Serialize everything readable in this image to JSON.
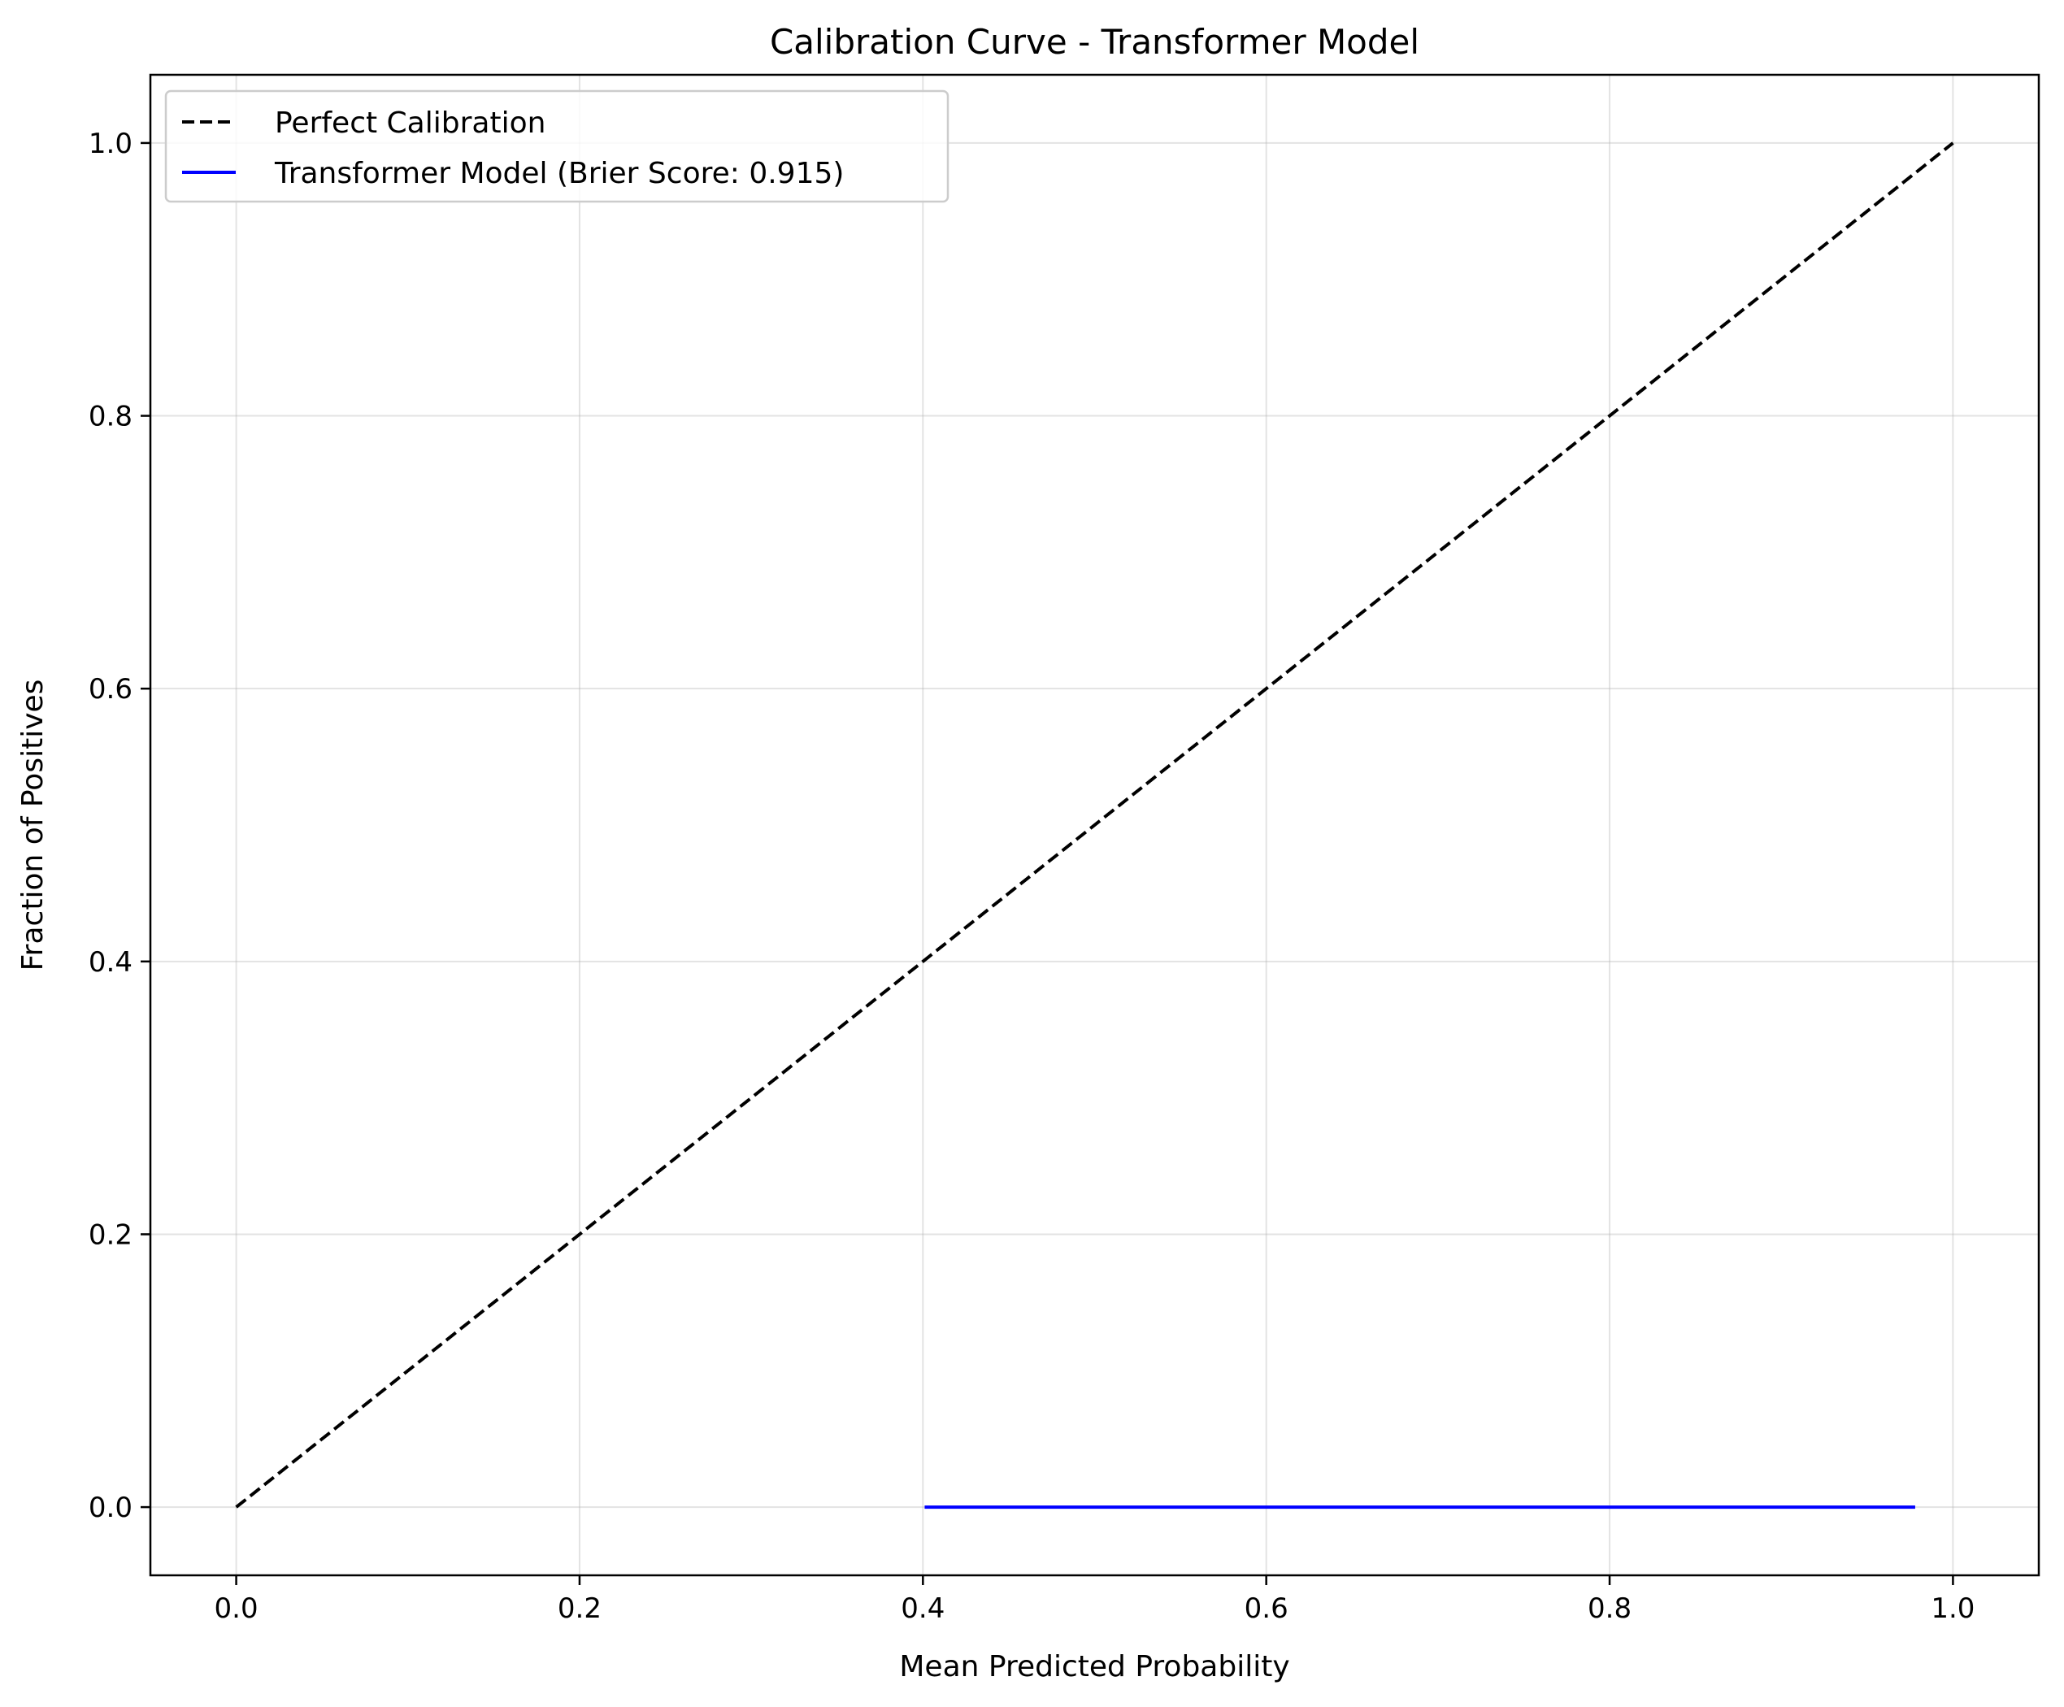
{
  "chart_data": {
    "type": "line",
    "title": "Calibration Curve - Transformer Model",
    "xlabel": "Mean Predicted Probability",
    "ylabel": "Fraction of Positives",
    "xlim": [
      -0.05,
      1.05
    ],
    "ylim": [
      -0.05,
      1.05
    ],
    "xticks": [
      0.0,
      0.2,
      0.4,
      0.6,
      0.8,
      1.0
    ],
    "xtick_labels": [
      "0.0",
      "0.2",
      "0.4",
      "0.6",
      "0.8",
      "1.0"
    ],
    "yticks": [
      0.0,
      0.2,
      0.4,
      0.6,
      0.8,
      1.0
    ],
    "ytick_labels": [
      "0.0",
      "0.2",
      "0.4",
      "0.6",
      "0.8",
      "1.0"
    ],
    "grid": true,
    "legend_position": "upper-left",
    "series": [
      {
        "name": "Perfect Calibration",
        "style": "dashed",
        "color": "#000000",
        "x": [
          0.0,
          1.0
        ],
        "y": [
          0.0,
          1.0
        ]
      },
      {
        "name": "Transformer Model (Brier Score: 0.915)",
        "style": "solid",
        "color": "#0000ff",
        "x": [
          0.401,
          0.978
        ],
        "y": [
          0.0,
          0.0
        ]
      }
    ]
  }
}
